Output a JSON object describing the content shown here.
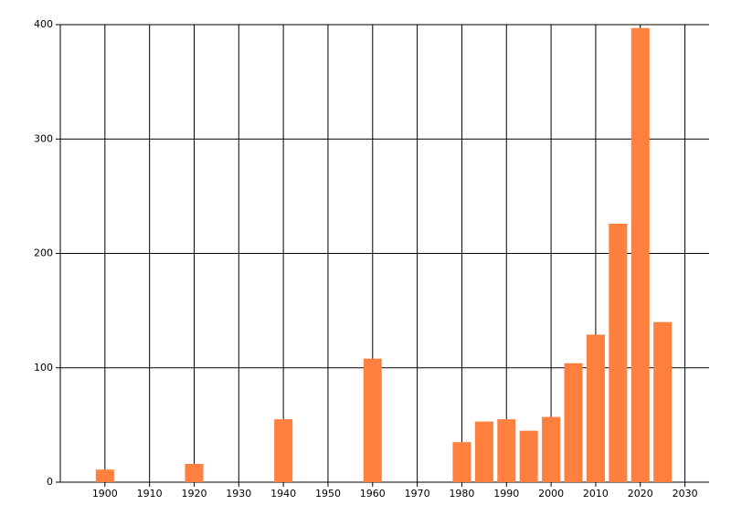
{
  "chart_data": {
    "type": "bar",
    "x": [
      1900,
      1920,
      1940,
      1960,
      1980,
      1985,
      1990,
      1995,
      2000,
      2005,
      2010,
      2015,
      2020,
      2025
    ],
    "values": [
      11,
      16,
      55,
      108,
      35,
      53,
      55,
      45,
      57,
      104,
      129,
      226,
      397,
      140
    ],
    "color": "#ff7f3f",
    "xlim": [
      1890,
      2035
    ],
    "xticks": [
      1900,
      1910,
      1920,
      1930,
      1940,
      1950,
      1960,
      1970,
      1980,
      1990,
      2000,
      2010,
      2020,
      2030
    ],
    "ylim": [
      0,
      400
    ],
    "yticks": [
      0,
      100,
      200,
      300,
      400
    ],
    "grid": true
  }
}
